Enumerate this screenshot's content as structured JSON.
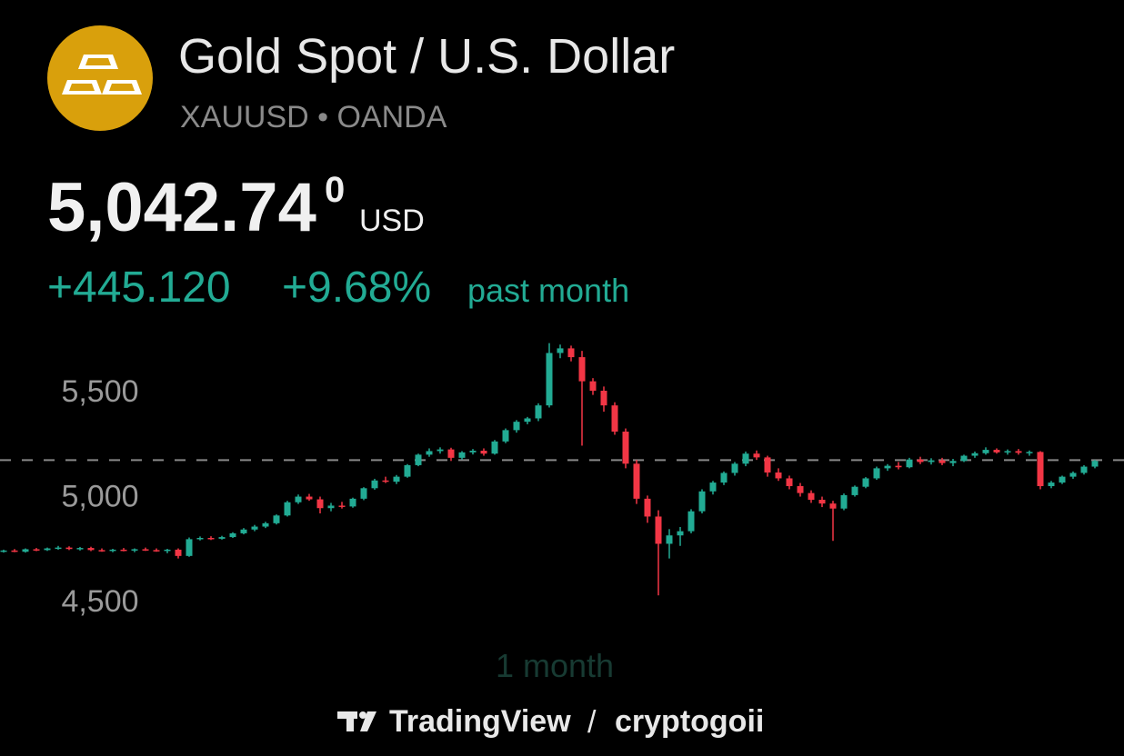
{
  "header": {
    "title": "Gold Spot / U.S. Dollar",
    "subtitle": "XAUUSD • OANDA",
    "price": "5,042.74",
    "price_superscript": "0",
    "currency": "USD",
    "change": "+445.120",
    "change_percent": "+9.68%",
    "period": "past month"
  },
  "chart_data": {
    "type": "candlestick",
    "period_label": "1 month",
    "ylim": [
      4330,
      5760
    ],
    "yticks": [
      {
        "value": 4500,
        "label": "4,500"
      },
      {
        "value": 5000,
        "label": "5,000"
      },
      {
        "value": 5500,
        "label": "5,500"
      }
    ],
    "reference_line": 5169,
    "up_color": "#22ab94",
    "down_color": "#f23645",
    "ohlc": [
      [
        4735,
        4742,
        4728,
        4738
      ],
      [
        4738,
        4745,
        4730,
        4732
      ],
      [
        4732,
        4748,
        4728,
        4744
      ],
      [
        4744,
        4750,
        4735,
        4740
      ],
      [
        4740,
        4752,
        4736,
        4748
      ],
      [
        4748,
        4760,
        4742,
        4752
      ],
      [
        4752,
        4758,
        4740,
        4745
      ],
      [
        4745,
        4755,
        4738,
        4750
      ],
      [
        4750,
        4756,
        4735,
        4740
      ],
      [
        4740,
        4748,
        4732,
        4736
      ],
      [
        4736,
        4746,
        4730,
        4742
      ],
      [
        4742,
        4750,
        4734,
        4738
      ],
      [
        4738,
        4748,
        4730,
        4744
      ],
      [
        4744,
        4752,
        4736,
        4740
      ],
      [
        4740,
        4748,
        4732,
        4736
      ],
      [
        4736,
        4746,
        4725,
        4742
      ],
      [
        4742,
        4748,
        4700,
        4712
      ],
      [
        4712,
        4800,
        4708,
        4792
      ],
      [
        4792,
        4805,
        4786,
        4798
      ],
      [
        4798,
        4806,
        4788,
        4794
      ],
      [
        4794,
        4808,
        4790,
        4802
      ],
      [
        4802,
        4825,
        4798,
        4820
      ],
      [
        4820,
        4845,
        4815,
        4838
      ],
      [
        4838,
        4860,
        4830,
        4852
      ],
      [
        4852,
        4875,
        4845,
        4868
      ],
      [
        4868,
        4910,
        4862,
        4905
      ],
      [
        4905,
        4975,
        4900,
        4968
      ],
      [
        4968,
        5005,
        4960,
        4995
      ],
      [
        4995,
        5008,
        4975,
        4982
      ],
      [
        4982,
        4995,
        4915,
        4940
      ],
      [
        4940,
        4965,
        4925,
        4952
      ],
      [
        4952,
        4970,
        4938,
        4948
      ],
      [
        4948,
        4990,
        4942,
        4985
      ],
      [
        4985,
        5040,
        4978,
        5035
      ],
      [
        5035,
        5080,
        5028,
        5072
      ],
      [
        5072,
        5090,
        5060,
        5066
      ],
      [
        5066,
        5098,
        5055,
        5090
      ],
      [
        5090,
        5150,
        5085,
        5145
      ],
      [
        5145,
        5200,
        5140,
        5195
      ],
      [
        5195,
        5225,
        5185,
        5212
      ],
      [
        5212,
        5230,
        5200,
        5220
      ],
      [
        5220,
        5228,
        5165,
        5180
      ],
      [
        5180,
        5212,
        5172,
        5206
      ],
      [
        5206,
        5222,
        5196,
        5214
      ],
      [
        5214,
        5225,
        5190,
        5200
      ],
      [
        5200,
        5265,
        5195,
        5258
      ],
      [
        5258,
        5320,
        5250,
        5312
      ],
      [
        5312,
        5360,
        5300,
        5352
      ],
      [
        5352,
        5375,
        5340,
        5368
      ],
      [
        5368,
        5440,
        5355,
        5430
      ],
      [
        5430,
        5727,
        5420,
        5680
      ],
      [
        5680,
        5720,
        5655,
        5702
      ],
      [
        5702,
        5715,
        5640,
        5660
      ],
      [
        5660,
        5690,
        5238,
        5545
      ],
      [
        5545,
        5560,
        5480,
        5500
      ],
      [
        5500,
        5520,
        5400,
        5430
      ],
      [
        5430,
        5445,
        5290,
        5305
      ],
      [
        5305,
        5320,
        5130,
        5152
      ],
      [
        5152,
        5170,
        4960,
        4985
      ],
      [
        4985,
        5000,
        4870,
        4900
      ],
      [
        4900,
        4930,
        4524,
        4770
      ],
      [
        4770,
        4840,
        4700,
        4810
      ],
      [
        4810,
        4850,
        4760,
        4830
      ],
      [
        4830,
        4935,
        4820,
        4925
      ],
      [
        4925,
        5030,
        4915,
        5020
      ],
      [
        5020,
        5070,
        5005,
        5062
      ],
      [
        5062,
        5115,
        5050,
        5108
      ],
      [
        5108,
        5160,
        5095,
        5152
      ],
      [
        5152,
        5210,
        5140,
        5200
      ],
      [
        5200,
        5215,
        5170,
        5182
      ],
      [
        5182,
        5190,
        5090,
        5110
      ],
      [
        5110,
        5130,
        5070,
        5082
      ],
      [
        5082,
        5095,
        5030,
        5045
      ],
      [
        5045,
        5060,
        4995,
        5012
      ],
      [
        5012,
        5025,
        4965,
        4980
      ],
      [
        4980,
        4995,
        4945,
        4962
      ],
      [
        4962,
        4975,
        4784,
        4938
      ],
      [
        4938,
        5010,
        4930,
        5002
      ],
      [
        5002,
        5048,
        4995,
        5042
      ],
      [
        5042,
        5088,
        5035,
        5082
      ],
      [
        5082,
        5138,
        5075,
        5130
      ],
      [
        5130,
        5150,
        5118,
        5142
      ],
      [
        5142,
        5160,
        5125,
        5135
      ],
      [
        5135,
        5180,
        5130,
        5172
      ],
      [
        5172,
        5185,
        5150,
        5160
      ],
      [
        5160,
        5178,
        5148,
        5168
      ],
      [
        5168,
        5180,
        5145,
        5155
      ],
      [
        5155,
        5175,
        5140,
        5165
      ],
      [
        5165,
        5195,
        5160,
        5190
      ],
      [
        5190,
        5210,
        5180,
        5202
      ],
      [
        5202,
        5230,
        5195,
        5218
      ],
      [
        5218,
        5225,
        5200,
        5206
      ],
      [
        5206,
        5220,
        5195,
        5212
      ],
      [
        5212,
        5222,
        5195,
        5204
      ],
      [
        5204,
        5215,
        5190,
        5208
      ],
      [
        5208,
        5212,
        5030,
        5045
      ],
      [
        5045,
        5070,
        5035,
        5062
      ],
      [
        5062,
        5095,
        5055,
        5090
      ],
      [
        5090,
        5115,
        5080,
        5108
      ],
      [
        5108,
        5145,
        5100,
        5138
      ],
      [
        5138,
        5170,
        5130,
        5165
      ]
    ]
  },
  "footer": {
    "brand": "TradingView",
    "separator": "/",
    "author": "cryptogoii"
  }
}
